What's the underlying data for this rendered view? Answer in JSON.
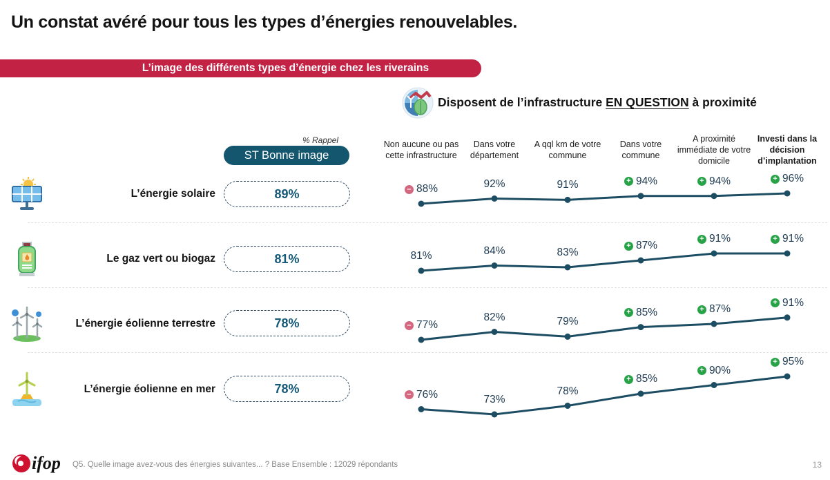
{
  "title": "Un constat avéré pour tous les types d’énergies renouvelables.",
  "banner": "L’image des différents types d’énergie chez les riverains",
  "infra_header": {
    "prefix": "Disposent de l’infrastructure ",
    "emph": "EN QUESTION",
    "suffix": " à proximité"
  },
  "rappel_label": "% Rappel",
  "st_label": "ST Bonne image",
  "columns": [
    "Non aucune ou pas cette infrastructure",
    "Dans votre département",
    "A qql km de votre commune",
    "Dans votre commune",
    "A proximité immédiate de votre domicile",
    "Investi dans la décision d’implantation"
  ],
  "rows": [
    {
      "label": "L’énergie solaire",
      "st_value": "89%"
    },
    {
      "label": "Le gaz vert ou biogaz",
      "st_value": "81%"
    },
    {
      "label": "L’énergie éolienne terrestre",
      "st_value": "78%"
    },
    {
      "label": "L’énergie éolienne en mer",
      "st_value": "78%"
    }
  ],
  "chart_data": {
    "type": "line",
    "title": "Disposent de l’infrastructure EN QUESTION à proximité",
    "categories": [
      "Non aucune ou pas cette infrastructure",
      "Dans votre département",
      "A qql km de votre commune",
      "Dans votre commune",
      "A proximité immédiate de votre domicile",
      "Investi dans la décision d’implantation"
    ],
    "unit": "%",
    "series": [
      {
        "name": "L’énergie solaire",
        "st_bonne_image": 89,
        "values": [
          88,
          92,
          91,
          94,
          94,
          96
        ],
        "markers": [
          "minus",
          "",
          "",
          "plus",
          "plus",
          "plus"
        ]
      },
      {
        "name": "Le gaz vert ou biogaz",
        "st_bonne_image": 81,
        "values": [
          81,
          84,
          83,
          87,
          91,
          91
        ],
        "markers": [
          "",
          "",
          "",
          "plus",
          "plus",
          "plus"
        ]
      },
      {
        "name": "L’énergie éolienne terrestre",
        "st_bonne_image": 78,
        "values": [
          77,
          82,
          79,
          85,
          87,
          91
        ],
        "markers": [
          "minus",
          "",
          "",
          "plus",
          "plus",
          "plus"
        ]
      },
      {
        "name": "L’énergie éolienne en mer",
        "st_bonne_image": 78,
        "values": [
          76,
          73,
          78,
          85,
          90,
          95
        ],
        "markers": [
          "minus",
          "",
          "",
          "plus",
          "plus",
          "plus"
        ]
      }
    ],
    "line_color": "#1d4d63",
    "marker_plus_color": "#27a347",
    "marker_minus_color": "#d4677f",
    "legend_position": "none",
    "grid": false
  },
  "footer": {
    "question": "Q5. Quelle image avez-vous des énergies suivantes... ? Base Ensemble : 12029 répondants",
    "page": "13",
    "logo_text": "ifop"
  }
}
